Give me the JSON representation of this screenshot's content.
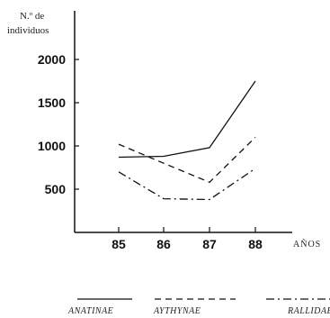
{
  "chart_data": {
    "type": "line",
    "ylabel_line1": "N.º de",
    "ylabel_line2": "individuos",
    "xlabel": "AÑOS",
    "categories": [
      "85",
      "86",
      "87",
      "88"
    ],
    "yticks": [
      "500",
      "1000",
      "1500",
      "2000"
    ],
    "ylim": [
      0,
      2100
    ],
    "grid": false,
    "legend_position": "bottom",
    "series": [
      {
        "name": "ANATINAE",
        "style": "solid",
        "values": [
          870,
          880,
          980,
          1750
        ]
      },
      {
        "name": "AYTHYNAE",
        "style": "dashed",
        "values": [
          1020,
          800,
          580,
          1100
        ]
      },
      {
        "name": "RALLIDAE",
        "style": "dashdot",
        "values": [
          700,
          390,
          380,
          740
        ]
      }
    ]
  }
}
